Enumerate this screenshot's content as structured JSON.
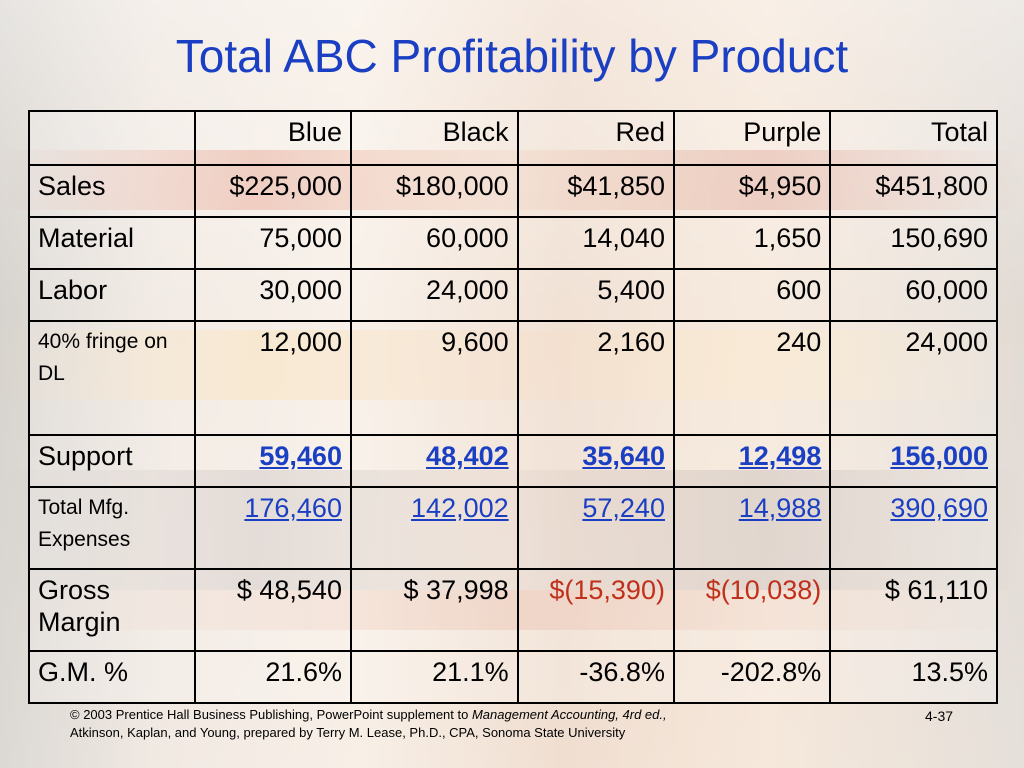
{
  "title": "Total ABC Profitability by Product",
  "table": {
    "columns": [
      "Blue",
      "Black",
      "Red",
      "Purple",
      "Total"
    ],
    "rows": [
      {
        "label": "Sales",
        "values": [
          "$225,000",
          "$180,000",
          "$41,850",
          "$4,950",
          "$451,800"
        ]
      },
      {
        "label": "Material",
        "values": [
          "75,000",
          "60,000",
          "14,040",
          "1,650",
          "150,690"
        ]
      },
      {
        "label": "Labor",
        "values": [
          "30,000",
          "24,000",
          "5,400",
          "600",
          "60,000"
        ]
      },
      {
        "label": "40% fringe on DL",
        "values": [
          "12,000",
          "9,600",
          "2,160",
          "240",
          "24,000"
        ]
      },
      {
        "label": "Support",
        "values": [
          "59,460",
          "48,402",
          "35,640",
          "12,498",
          "156,000"
        ]
      },
      {
        "label": "Total Mfg. Expenses",
        "values": [
          "176,460",
          "142,002",
          "57,240",
          "14,988",
          "390,690"
        ]
      },
      {
        "label": "Gross Margin",
        "values": [
          "$ 48,540",
          "$ 37,998",
          "$(15,390)",
          "$(10,038)",
          "$ 61,110"
        ]
      },
      {
        "label": "G.M. %",
        "values": [
          "21.6%",
          "21.1%",
          "-36.8%",
          "-202.8%",
          "13.5%"
        ]
      }
    ]
  },
  "colors": {
    "title": "#1a3fc2",
    "label": "#1a3fc2",
    "negative": "#c0301a"
  },
  "footer": {
    "copyright_prefix": "© 2003 Prentice Hall Business Publishing, PowerPoint supplement to ",
    "book_title": "Management Accounting, 4rd ed.,",
    "line2": "Atkinson, Kaplan, and Young, prepared by Terry M. Lease, Ph.D., CPA, Sonoma State University",
    "page_number": "4-37"
  }
}
